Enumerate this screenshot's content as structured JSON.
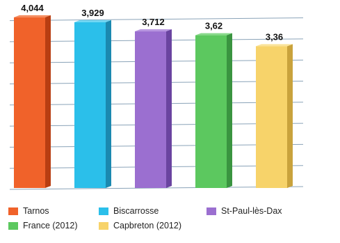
{
  "chart_data": {
    "type": "bar",
    "categories": [
      "Tarnos",
      "Biscarrosse",
      "St-Paul-lès-Dax",
      "France (2012)",
      "Capbreton (2012)"
    ],
    "values": [
      4.044,
      3.929,
      3.712,
      3.62,
      3.36
    ],
    "value_labels": [
      "4,044",
      "3,929",
      "3,712",
      "3,62",
      "3,36"
    ],
    "title": "",
    "xlabel": "",
    "ylabel": "",
    "ylim": [
      0,
      4.0
    ],
    "grid": true,
    "legend_position": "bottom",
    "colors": [
      "#f0622a",
      "#2bbfea",
      "#9b6fd0",
      "#5cc85f",
      "#f7d36a"
    ],
    "side_colors": [
      "#b83e12",
      "#1b89b0",
      "#6a44a0",
      "#3a9440",
      "#c9a23c"
    ],
    "top_colors": [
      "#f48a5c",
      "#6fd6f3",
      "#b897e0",
      "#88d98a",
      "#fae39a"
    ],
    "legend": [
      {
        "label": "Tarnos",
        "color": "#f0622a"
      },
      {
        "label": "Biscarrosse",
        "color": "#2bbfea"
      },
      {
        "label": "St-Paul-lès-Dax",
        "color": "#9b6fd0"
      },
      {
        "label": "France (2012)",
        "color": "#5cc85f"
      },
      {
        "label": "Capbreton (2012)",
        "color": "#f7d36a"
      }
    ]
  }
}
